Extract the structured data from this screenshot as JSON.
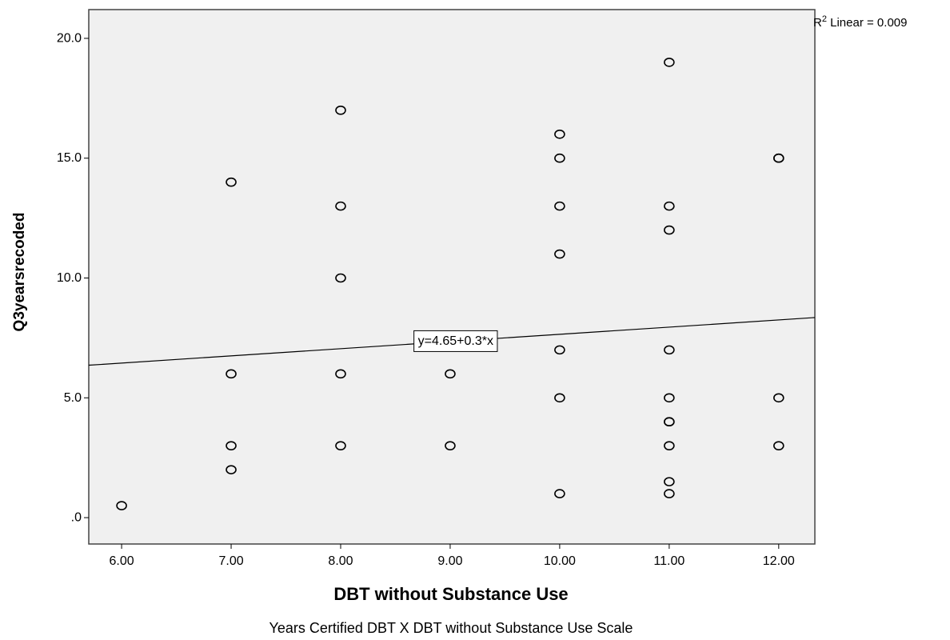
{
  "chart_data": {
    "type": "scatter",
    "xlabel": "DBT without Substance Use",
    "ylabel": "Q3yearsrecoded",
    "caption": "Years Certified DBT X DBT without Substance Use Scale",
    "xlim": [
      5.7,
      12.33
    ],
    "ylim": [
      -1.1,
      21.2
    ],
    "x_ticks": [
      6,
      7,
      8,
      9,
      10,
      11,
      12
    ],
    "x_tick_labels": [
      "6.00",
      "7.00",
      "8.00",
      "9.00",
      "10.00",
      "11.00",
      "12.00"
    ],
    "y_ticks": [
      0,
      5,
      10,
      15,
      20
    ],
    "y_tick_labels": [
      ".0",
      "5.0",
      "10.0",
      "15.0",
      "20.0"
    ],
    "points": [
      {
        "x": 6,
        "y": 0.5
      },
      {
        "x": 7,
        "y": 14
      },
      {
        "x": 7,
        "y": 6
      },
      {
        "x": 7,
        "y": 3
      },
      {
        "x": 7,
        "y": 2
      },
      {
        "x": 8,
        "y": 17
      },
      {
        "x": 8,
        "y": 13
      },
      {
        "x": 8,
        "y": 10
      },
      {
        "x": 8,
        "y": 6
      },
      {
        "x": 8,
        "y": 3
      },
      {
        "x": 9,
        "y": 6
      },
      {
        "x": 9,
        "y": 3
      },
      {
        "x": 10,
        "y": 16
      },
      {
        "x": 10,
        "y": 15
      },
      {
        "x": 10,
        "y": 13
      },
      {
        "x": 10,
        "y": 11
      },
      {
        "x": 10,
        "y": 7
      },
      {
        "x": 10,
        "y": 5
      },
      {
        "x": 10,
        "y": 1
      },
      {
        "x": 11,
        "y": 19
      },
      {
        "x": 11,
        "y": 13
      },
      {
        "x": 11,
        "y": 12
      },
      {
        "x": 11,
        "y": 7
      },
      {
        "x": 11,
        "y": 5
      },
      {
        "x": 11,
        "y": 4
      },
      {
        "x": 11,
        "y": 4
      },
      {
        "x": 11,
        "y": 3
      },
      {
        "x": 11,
        "y": 1.5
      },
      {
        "x": 11,
        "y": 1
      },
      {
        "x": 12,
        "y": 15
      },
      {
        "x": 12,
        "y": 15
      },
      {
        "x": 12,
        "y": 5
      },
      {
        "x": 12,
        "y": 3
      }
    ],
    "fit_line": {
      "intercept": 4.65,
      "slope": 0.3,
      "label": "y=4.65+0.3*x",
      "label_x": 9.05
    },
    "r2_prefix": "R",
    "r2_sup": "2",
    "r2_text": " Linear = 0.009",
    "grid": false,
    "legend": "none",
    "colors": {
      "plot_background": "#f0f0f0",
      "marker_stroke": "#000000",
      "line": "#000000"
    }
  }
}
